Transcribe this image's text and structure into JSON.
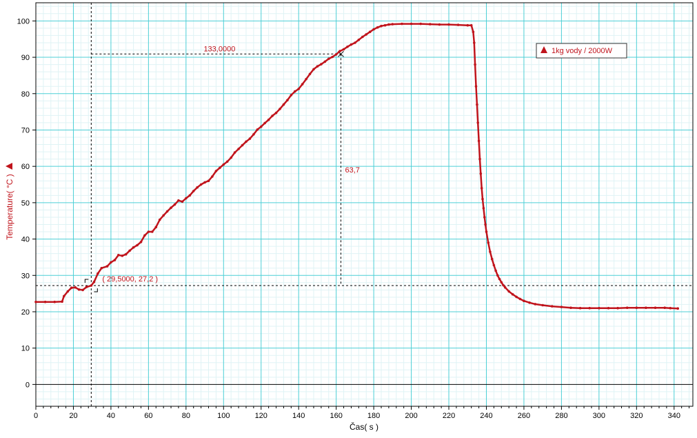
{
  "chart_data": {
    "type": "scatter",
    "xlabel": "Čas( s )",
    "ylabel": "Temperature( °C )",
    "xlim": [
      0,
      350
    ],
    "ylim": [
      -6,
      105
    ],
    "x_ticks": [
      0,
      20,
      40,
      60,
      80,
      100,
      120,
      140,
      160,
      180,
      200,
      220,
      240,
      260,
      280,
      300,
      320,
      340
    ],
    "y_ticks": [
      0,
      10,
      20,
      30,
      40,
      50,
      60,
      70,
      80,
      90,
      100
    ],
    "x_tick_labels": [
      "0",
      "20",
      "40",
      "60",
      "80",
      "100",
      "120",
      "140",
      "160",
      "180",
      "200",
      "220",
      "240",
      "260",
      "280",
      "300",
      "320",
      "340"
    ],
    "y_tick_labels": [
      "0",
      "10",
      "20",
      "30",
      "40",
      "50",
      "60",
      "70",
      "80",
      "90",
      "100"
    ],
    "grid": true,
    "legend": {
      "position": "top-right",
      "label": "1kg vody / 2000W"
    },
    "series": [
      {
        "name": "1kg vody / 2000W",
        "color": "#c0141c",
        "marker": "triangle",
        "points": [
          [
            0,
            22.7
          ],
          [
            5,
            22.7
          ],
          [
            10,
            22.7
          ],
          [
            14,
            22.8
          ],
          [
            15,
            24.3
          ],
          [
            17,
            25.6
          ],
          [
            19,
            26.6
          ],
          [
            21,
            26.7
          ],
          [
            23,
            26.1
          ],
          [
            25,
            26
          ],
          [
            27,
            26.8
          ],
          [
            29.5,
            27.2
          ],
          [
            31,
            28.2
          ],
          [
            33,
            30.5
          ],
          [
            35,
            32
          ],
          [
            38,
            32.5
          ],
          [
            40,
            33.6
          ],
          [
            42,
            34.2
          ],
          [
            44,
            35.6
          ],
          [
            46,
            35.4
          ],
          [
            48,
            35.8
          ],
          [
            50,
            36.8
          ],
          [
            52,
            37.7
          ],
          [
            54,
            38.3
          ],
          [
            56,
            39.2
          ],
          [
            58,
            41
          ],
          [
            60,
            42
          ],
          [
            62,
            42
          ],
          [
            64,
            43.3
          ],
          [
            66,
            45.3
          ],
          [
            68,
            46.5
          ],
          [
            70,
            47.6
          ],
          [
            72,
            48.6
          ],
          [
            74,
            49.5
          ],
          [
            76,
            50.6
          ],
          [
            78,
            50.3
          ],
          [
            80,
            51.2
          ],
          [
            82,
            52
          ],
          [
            84,
            53.2
          ],
          [
            86,
            54.2
          ],
          [
            88,
            55
          ],
          [
            90,
            55.6
          ],
          [
            92,
            56
          ],
          [
            94,
            57.2
          ],
          [
            96,
            58.7
          ],
          [
            98,
            59.6
          ],
          [
            100,
            60.5
          ],
          [
            102,
            61.3
          ],
          [
            104,
            62.4
          ],
          [
            106,
            63.8
          ],
          [
            108,
            64.8
          ],
          [
            110,
            65.8
          ],
          [
            112,
            66.8
          ],
          [
            114,
            67.6
          ],
          [
            116,
            68.8
          ],
          [
            118,
            70.1
          ],
          [
            120,
            70.9
          ],
          [
            122,
            71.9
          ],
          [
            124,
            72.8
          ],
          [
            126,
            73.9
          ],
          [
            128,
            74.7
          ],
          [
            130,
            75.8
          ],
          [
            132,
            77
          ],
          [
            134,
            78.2
          ],
          [
            136,
            79.6
          ],
          [
            138,
            80.6
          ],
          [
            140,
            81.3
          ],
          [
            142,
            82.6
          ],
          [
            144,
            84
          ],
          [
            146,
            85.4
          ],
          [
            148,
            86.7
          ],
          [
            150,
            87.5
          ],
          [
            152,
            88.1
          ],
          [
            154,
            88.8
          ],
          [
            156,
            89.6
          ],
          [
            158,
            90.1
          ],
          [
            160,
            90.8
          ],
          [
            162,
            91.7
          ],
          [
            164,
            92.2
          ],
          [
            166,
            92.9
          ],
          [
            168,
            93.5
          ],
          [
            170,
            94
          ],
          [
            172,
            94.8
          ],
          [
            174,
            95.6
          ],
          [
            176,
            96.3
          ],
          [
            178,
            97
          ],
          [
            180,
            97.7
          ],
          [
            182,
            98.2
          ],
          [
            184,
            98.6
          ],
          [
            186,
            98.8
          ],
          [
            188,
            99
          ],
          [
            190,
            99.1
          ],
          [
            195,
            99.2
          ],
          [
            200,
            99.2
          ],
          [
            205,
            99.2
          ],
          [
            210,
            99.1
          ],
          [
            215,
            99
          ],
          [
            220,
            99
          ],
          [
            225,
            98.9
          ],
          [
            230,
            98.8
          ],
          [
            232,
            98.8
          ],
          [
            233,
            97
          ],
          [
            233.5,
            94
          ],
          [
            234,
            88
          ],
          [
            234.5,
            82
          ],
          [
            235,
            77
          ],
          [
            235.5,
            72
          ],
          [
            236,
            67
          ],
          [
            236.5,
            62
          ],
          [
            237,
            58
          ],
          [
            237.5,
            54
          ],
          [
            238,
            51
          ],
          [
            238.5,
            48.5
          ],
          [
            239,
            46
          ],
          [
            239.5,
            44
          ],
          [
            240,
            42
          ],
          [
            241,
            39
          ],
          [
            242,
            36.5
          ],
          [
            243,
            34.5
          ],
          [
            244,
            32.8
          ],
          [
            245,
            31.3
          ],
          [
            246,
            30
          ],
          [
            247,
            29
          ],
          [
            248,
            28.1
          ],
          [
            249,
            27.3
          ],
          [
            250,
            26.7
          ],
          [
            252,
            25.6
          ],
          [
            254,
            24.8
          ],
          [
            256,
            24.1
          ],
          [
            258,
            23.5
          ],
          [
            260,
            23
          ],
          [
            263,
            22.5
          ],
          [
            266,
            22.1
          ],
          [
            270,
            21.8
          ],
          [
            275,
            21.5
          ],
          [
            280,
            21.3
          ],
          [
            285,
            21.1
          ],
          [
            290,
            21
          ],
          [
            295,
            21
          ],
          [
            300,
            21
          ],
          [
            305,
            21
          ],
          [
            310,
            21
          ],
          [
            315,
            21.1
          ],
          [
            320,
            21.1
          ],
          [
            325,
            21.1
          ],
          [
            330,
            21.1
          ],
          [
            335,
            21.1
          ],
          [
            338,
            21
          ],
          [
            342,
            20.9
          ]
        ]
      }
    ],
    "annotations": {
      "point_label": "( 29,5000, 27,2 )",
      "dx_label": "133,0000",
      "dy_label": "63,7"
    }
  }
}
